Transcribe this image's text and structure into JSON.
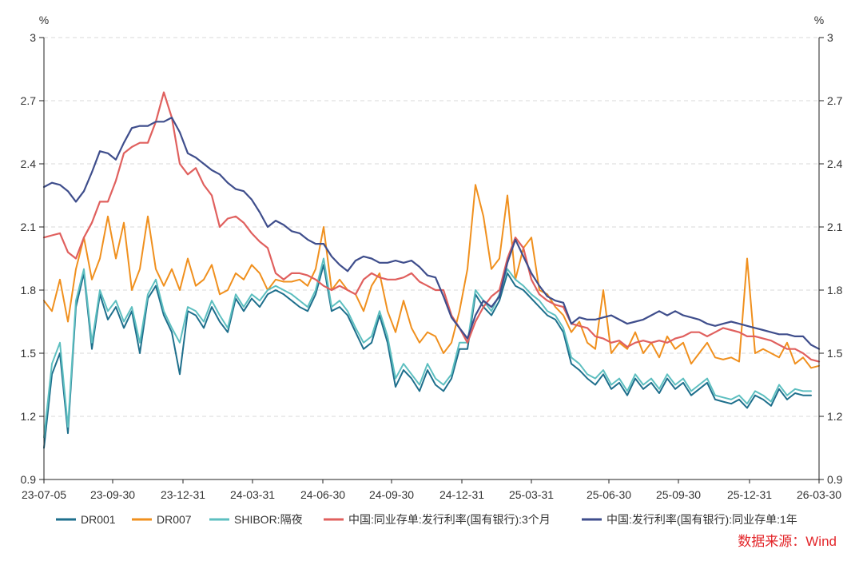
{
  "chart_data": {
    "type": "line",
    "y_unit": "%",
    "ylim": [
      0.9,
      3
    ],
    "x_range": [
      0,
      97
    ],
    "y_ticks": [
      {
        "value": 0.9,
        "label": "0.9"
      },
      {
        "value": 1.2,
        "label": "1.2"
      },
      {
        "value": 1.5,
        "label": "1.5"
      },
      {
        "value": 1.8,
        "label": "1.8"
      },
      {
        "value": 2.1,
        "label": "2.1"
      },
      {
        "value": 2.4,
        "label": "2.4"
      },
      {
        "value": 2.7,
        "label": "2.7"
      },
      {
        "value": 3,
        "label": "3"
      }
    ],
    "x_ticks": [
      {
        "pos": 0,
        "label": "23-07-05"
      },
      {
        "pos": 8.6,
        "label": "23-09-30"
      },
      {
        "pos": 17.4,
        "label": "23-12-31"
      },
      {
        "pos": 26.1,
        "label": "24-03-31"
      },
      {
        "pos": 34.9,
        "label": "24-06-30"
      },
      {
        "pos": 43.5,
        "label": "24-09-30"
      },
      {
        "pos": 52.3,
        "label": "24-12-31"
      },
      {
        "pos": 61.0,
        "label": "25-03-31"
      },
      {
        "pos": 70.7,
        "label": "25-06-30"
      },
      {
        "pos": 79.4,
        "label": "25-09-30"
      },
      {
        "pos": 88.3,
        "label": "25-12-31"
      },
      {
        "pos": 97,
        "label": "26-03-30"
      }
    ],
    "series": [
      {
        "name": "DR001",
        "color": "#1e6f8c",
        "values": [
          1.05,
          1.4,
          1.5,
          1.12,
          1.72,
          1.88,
          1.52,
          1.78,
          1.66,
          1.72,
          1.62,
          1.7,
          1.5,
          1.76,
          1.82,
          1.68,
          1.6,
          1.4,
          1.7,
          1.68,
          1.62,
          1.72,
          1.65,
          1.6,
          1.76,
          1.7,
          1.76,
          1.72,
          1.78,
          1.8,
          1.78,
          1.75,
          1.72,
          1.7,
          1.78,
          1.92,
          1.7,
          1.72,
          1.68,
          1.6,
          1.52,
          1.55,
          1.68,
          1.55,
          1.34,
          1.42,
          1.38,
          1.32,
          1.42,
          1.35,
          1.32,
          1.38,
          1.52,
          1.52,
          1.78,
          1.72,
          1.68,
          1.75,
          1.88,
          1.82,
          1.8,
          1.76,
          1.72,
          1.68,
          1.66,
          1.6,
          1.45,
          1.42,
          1.38,
          1.35,
          1.4,
          1.33,
          1.36,
          1.3,
          1.38,
          1.33,
          1.36,
          1.31,
          1.38,
          1.33,
          1.36,
          1.3,
          1.33,
          1.36,
          1.28,
          1.27,
          1.26,
          1.28,
          1.24,
          1.3,
          1.28,
          1.25,
          1.33,
          1.28,
          1.31,
          1.3,
          1.3,
          null
        ]
      },
      {
        "name": "DR007",
        "color": "#f0901e",
        "values": [
          1.75,
          1.7,
          1.85,
          1.65,
          1.9,
          2.05,
          1.85,
          1.95,
          2.15,
          1.95,
          2.12,
          1.8,
          1.9,
          2.15,
          1.9,
          1.82,
          1.9,
          1.8,
          1.95,
          1.82,
          1.85,
          1.92,
          1.78,
          1.8,
          1.88,
          1.85,
          1.92,
          1.88,
          1.8,
          1.85,
          1.84,
          1.84,
          1.85,
          1.82,
          1.9,
          2.1,
          1.8,
          1.85,
          1.8,
          1.78,
          1.7,
          1.82,
          1.88,
          1.7,
          1.6,
          1.75,
          1.62,
          1.55,
          1.6,
          1.58,
          1.5,
          1.55,
          1.7,
          1.9,
          2.3,
          2.15,
          1.9,
          1.95,
          2.25,
          1.85,
          2.0,
          2.05,
          1.8,
          1.78,
          1.72,
          1.68,
          1.6,
          1.65,
          1.55,
          1.52,
          1.8,
          1.5,
          1.55,
          1.52,
          1.6,
          1.5,
          1.55,
          1.48,
          1.58,
          1.52,
          1.55,
          1.45,
          1.5,
          1.55,
          1.48,
          1.47,
          1.48,
          1.46,
          1.95,
          1.5,
          1.52,
          1.5,
          1.48,
          1.55,
          1.45,
          1.48,
          1.43,
          1.44
        ]
      },
      {
        "name": "SHIBOR:隔夜",
        "color": "#5dbfc0",
        "values": [
          1.1,
          1.45,
          1.55,
          1.15,
          1.75,
          1.9,
          1.55,
          1.8,
          1.7,
          1.75,
          1.65,
          1.72,
          1.55,
          1.78,
          1.85,
          1.7,
          1.62,
          1.55,
          1.72,
          1.7,
          1.65,
          1.75,
          1.68,
          1.62,
          1.78,
          1.72,
          1.78,
          1.75,
          1.8,
          1.82,
          1.8,
          1.78,
          1.75,
          1.72,
          1.8,
          1.95,
          1.72,
          1.75,
          1.7,
          1.62,
          1.55,
          1.58,
          1.7,
          1.58,
          1.38,
          1.45,
          1.4,
          1.35,
          1.45,
          1.38,
          1.35,
          1.4,
          1.55,
          1.55,
          1.8,
          1.75,
          1.7,
          1.78,
          1.9,
          1.85,
          1.82,
          1.78,
          1.75,
          1.7,
          1.68,
          1.62,
          1.48,
          1.45,
          1.4,
          1.38,
          1.42,
          1.35,
          1.38,
          1.32,
          1.4,
          1.35,
          1.38,
          1.33,
          1.4,
          1.35,
          1.38,
          1.32,
          1.35,
          1.38,
          1.3,
          1.29,
          1.28,
          1.3,
          1.26,
          1.32,
          1.3,
          1.27,
          1.35,
          1.3,
          1.33,
          1.32,
          1.32,
          null
        ]
      },
      {
        "name": "中国:同业存单:发行利率(国有银行):3个月",
        "color": "#e0605e",
        "values": [
          2.05,
          2.06,
          2.07,
          1.98,
          1.95,
          2.05,
          2.12,
          2.22,
          2.22,
          2.32,
          2.45,
          2.48,
          2.5,
          2.5,
          2.6,
          2.74,
          2.62,
          2.4,
          2.35,
          2.38,
          2.3,
          2.25,
          2.1,
          2.14,
          2.15,
          2.12,
          2.07,
          2.03,
          2.0,
          1.88,
          1.85,
          1.88,
          1.88,
          1.87,
          1.85,
          1.82,
          1.8,
          1.82,
          1.8,
          1.78,
          1.85,
          1.88,
          1.86,
          1.85,
          1.85,
          1.86,
          1.88,
          1.84,
          1.82,
          1.8,
          1.8,
          1.68,
          1.62,
          1.55,
          1.65,
          1.72,
          1.77,
          1.8,
          1.95,
          2.05,
          2.0,
          1.85,
          1.78,
          1.75,
          1.73,
          1.72,
          1.64,
          1.63,
          1.62,
          1.58,
          1.57,
          1.55,
          1.56,
          1.53,
          1.55,
          1.56,
          1.55,
          1.56,
          1.55,
          1.57,
          1.58,
          1.6,
          1.6,
          1.58,
          1.6,
          1.62,
          1.61,
          1.6,
          1.58,
          1.58,
          1.57,
          1.56,
          1.54,
          1.52,
          1.52,
          1.5,
          1.47,
          1.46
        ]
      },
      {
        "name": "中国:发行利率(国有银行):同业存单:1年",
        "color": "#3f4e8c",
        "values": [
          2.29,
          2.31,
          2.3,
          2.27,
          2.22,
          2.27,
          2.36,
          2.46,
          2.45,
          2.42,
          2.5,
          2.57,
          2.58,
          2.58,
          2.6,
          2.6,
          2.62,
          2.55,
          2.45,
          2.43,
          2.4,
          2.37,
          2.35,
          2.31,
          2.28,
          2.27,
          2.23,
          2.17,
          2.1,
          2.13,
          2.11,
          2.08,
          2.07,
          2.04,
          2.02,
          2.02,
          1.96,
          1.92,
          1.89,
          1.94,
          1.96,
          1.95,
          1.93,
          1.93,
          1.94,
          1.93,
          1.94,
          1.91,
          1.87,
          1.86,
          1.77,
          1.67,
          1.62,
          1.57,
          1.68,
          1.75,
          1.72,
          1.77,
          1.93,
          2.04,
          1.96,
          1.88,
          1.82,
          1.77,
          1.75,
          1.74,
          1.64,
          1.67,
          1.66,
          1.66,
          1.67,
          1.68,
          1.66,
          1.64,
          1.65,
          1.66,
          1.68,
          1.7,
          1.68,
          1.7,
          1.68,
          1.67,
          1.66,
          1.64,
          1.63,
          1.64,
          1.65,
          1.64,
          1.63,
          1.62,
          1.61,
          1.6,
          1.59,
          1.59,
          1.58,
          1.58,
          1.54,
          1.52
        ]
      }
    ],
    "source": "数据来源：Wind"
  }
}
